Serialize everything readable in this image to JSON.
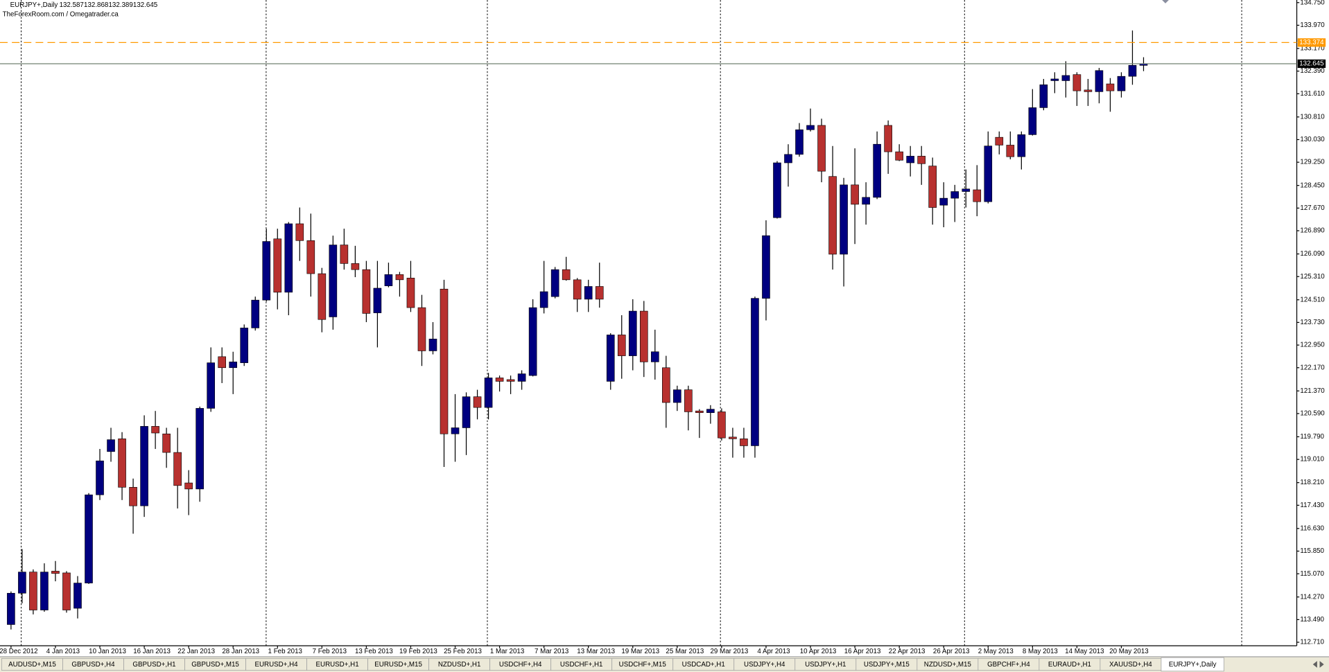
{
  "chart_data": {
    "type": "candlestick",
    "title": "EURJPY+,Daily",
    "watermark": "TheForexRoom.com / Omegatrader.ca",
    "categories": [
      "28 Dec 2012",
      null,
      null,
      null,
      "4 Jan 2013",
      null,
      null,
      null,
      "10 Jan 2013",
      null,
      null,
      null,
      "16 Jan 2013",
      null,
      null,
      null,
      "22 Jan 2013",
      null,
      null,
      null,
      "28 Jan 2013",
      null,
      null,
      null,
      "1 Feb 2013",
      null,
      null,
      null,
      "7 Feb 2013",
      null,
      null,
      null,
      "13 Feb 2013",
      null,
      null,
      null,
      "19 Feb 2013",
      null,
      null,
      null,
      "25 Feb 2013",
      null,
      null,
      null,
      "1 Mar 2013",
      null,
      null,
      null,
      "7 Mar 2013",
      null,
      null,
      null,
      "13 Mar 2013",
      null,
      null,
      null,
      "19 Mar 2013",
      null,
      null,
      null,
      "25 Mar 2013",
      null,
      null,
      null,
      "29 Mar 2013",
      null,
      null,
      null,
      "4 Apr 2013",
      null,
      null,
      null,
      "10 Apr 2013",
      null,
      null,
      null,
      "16 Apr 2013",
      null,
      null,
      null,
      "22 Apr 2013",
      null,
      null,
      null,
      "26 Apr 2013",
      null,
      null,
      null,
      "2 May 2013",
      null,
      null,
      null,
      "8 May 2013",
      null,
      null,
      null,
      "14 May 2013",
      null,
      null,
      null,
      "20 May 2013",
      null,
      null
    ],
    "open": [
      113.32,
      114.4,
      115.13,
      113.82,
      115.16,
      115.1,
      113.88,
      114.75,
      117.79,
      119.28,
      119.72,
      118.05,
      117.41,
      120.15,
      119.89,
      119.25,
      118.2,
      117.99,
      120.77,
      122.55,
      122.17,
      122.34,
      123.54,
      124.5,
      126.61,
      124.77,
      127.13,
      126.55,
      125.41,
      123.92,
      126.4,
      125.76,
      125.55,
      124.06,
      124.99,
      125.38,
      125.26,
      124.24,
      122.75,
      124.88,
      119.89,
      120.1,
      121.17,
      120.8,
      121.82,
      121.76,
      121.7,
      121.9,
      124.24,
      124.62,
      125.55,
      125.2,
      124.53,
      124.97,
      121.7,
      123.3,
      122.58,
      124.12,
      122.37,
      122.17,
      120.97,
      121.41,
      120.68,
      120.62,
      120.65,
      119.78,
      119.72,
      119.48,
      124.56,
      127.34,
      129.23,
      129.52,
      130.37,
      130.52,
      128.76,
      126.08,
      128.47,
      127.8,
      128.04,
      130.52,
      129.61,
      129.23,
      129.46,
      129.12,
      127.77,
      128.01,
      128.24,
      128.3,
      127.89,
      130.11,
      129.84,
      129.44,
      130.2,
      131.13,
      132.06,
      132.06,
      132.27,
      131.74,
      131.68,
      131.95,
      131.71,
      132.21,
      132.587
    ],
    "high": [
      114.46,
      115.92,
      115.22,
      115.43,
      115.51,
      115.16,
      114.99,
      117.85,
      119.37,
      120.1,
      119.95,
      118.35,
      120.53,
      120.68,
      120.1,
      120.1,
      118.64,
      120.83,
      122.87,
      122.87,
      122.72,
      123.66,
      124.62,
      126.96,
      126.96,
      127.19,
      127.69,
      127.48,
      125.61,
      126.72,
      126.96,
      126.37,
      125.85,
      125.85,
      125.79,
      125.47,
      125.85,
      124.68,
      123.74,
      125.2,
      121.26,
      121.32,
      121.41,
      121.99,
      121.9,
      121.9,
      122.08,
      124.53,
      125.85,
      125.64,
      125.99,
      125.26,
      125.2,
      125.79,
      123.36,
      123.98,
      124.53,
      124.47,
      123.48,
      122.58,
      121.55,
      121.55,
      120.74,
      120.88,
      120.77,
      120.1,
      120.1,
      124.62,
      127.25,
      129.29,
      129.87,
      130.6,
      131.1,
      130.75,
      129.81,
      128.71,
      129.73,
      128.56,
      130.31,
      130.69,
      129.87,
      129.81,
      129.81,
      129.41,
      128.56,
      128.47,
      129.0,
      129.15,
      130.31,
      130.31,
      130.31,
      130.31,
      131.77,
      132.12,
      132.35,
      132.73,
      132.35,
      132.12,
      132.5,
      132.15,
      132.35,
      133.79,
      132.868
    ],
    "low": [
      113.15,
      114.05,
      113.67,
      113.76,
      114.81,
      113.73,
      113.53,
      114.72,
      117.61,
      118.93,
      117.61,
      116.45,
      117.03,
      119.37,
      118.72,
      117.32,
      117.09,
      117.55,
      120.65,
      121.64,
      121.26,
      122.23,
      123.45,
      124.45,
      124.18,
      123.98,
      125.85,
      124.62,
      123.39,
      123.48,
      125.55,
      125.29,
      123.74,
      122.87,
      124.94,
      124.62,
      124.09,
      122.23,
      122.63,
      118.75,
      118.93,
      119.16,
      120.39,
      120.39,
      121.35,
      121.26,
      121.41,
      121.87,
      124.04,
      124.56,
      125.17,
      124.09,
      124.09,
      124.24,
      121.41,
      121.79,
      122.08,
      121.85,
      121.76,
      120.1,
      120.68,
      120.01,
      119.75,
      120.24,
      119.66,
      119.07,
      119.07,
      119.07,
      123.8,
      127.31,
      128.41,
      129.44,
      130.31,
      128.56,
      125.55,
      124.97,
      126.43,
      127.1,
      127.98,
      128.85,
      129.29,
      128.76,
      128.47,
      127.1,
      127.01,
      127.19,
      127.69,
      127.39,
      127.83,
      129.52,
      129.35,
      129.0,
      130.17,
      131.04,
      131.63,
      131.48,
      131.19,
      131.19,
      131.28,
      130.99,
      131.48,
      131.92,
      132.389
    ],
    "close": [
      114.4,
      115.13,
      113.82,
      115.13,
      115.08,
      113.82,
      114.75,
      117.79,
      118.96,
      119.69,
      118.05,
      117.41,
      120.15,
      119.92,
      119.25,
      118.11,
      117.99,
      120.77,
      122.34,
      122.17,
      122.37,
      123.54,
      124.5,
      126.52,
      124.77,
      127.13,
      126.55,
      125.41,
      123.83,
      126.4,
      125.76,
      125.55,
      124.04,
      124.91,
      125.38,
      125.2,
      124.24,
      122.75,
      123.16,
      119.89,
      120.1,
      121.17,
      120.8,
      121.82,
      121.7,
      121.7,
      121.96,
      124.24,
      124.79,
      125.55,
      125.2,
      124.53,
      124.97,
      124.53,
      123.3,
      122.58,
      124.12,
      122.37,
      122.72,
      120.97,
      121.41,
      120.65,
      120.62,
      120.74,
      119.75,
      119.72,
      119.48,
      124.56,
      126.72,
      129.23,
      129.52,
      130.37,
      130.52,
      128.94,
      126.08,
      128.47,
      127.8,
      128.04,
      129.87,
      129.61,
      129.32,
      129.46,
      129.2,
      127.69,
      128.01,
      128.24,
      128.33,
      127.89,
      129.81,
      129.84,
      129.44,
      130.2,
      131.13,
      131.92,
      132.12,
      132.24,
      131.71,
      131.68,
      132.41,
      131.71,
      132.21,
      132.59,
      132.645
    ],
    "colors": {
      "up": "#000080",
      "down": "#b8312f",
      "wick": "#000000"
    },
    "alert_level": 133.374,
    "alert_color": "#ff9900",
    "ylim": [
      112.59,
      134.84
    ],
    "yticks": [
      {
        "value": 112.71,
        "label": "112.710"
      },
      {
        "value": 113.49,
        "label": "113.490"
      },
      {
        "value": 114.27,
        "label": "114.270"
      },
      {
        "value": 115.07,
        "label": "115.070"
      },
      {
        "value": 115.85,
        "label": "115.850"
      },
      {
        "value": 116.63,
        "label": "116.630"
      },
      {
        "value": 117.43,
        "label": "117.430"
      },
      {
        "value": 118.21,
        "label": "118.210"
      },
      {
        "value": 119.01,
        "label": "119.010"
      },
      {
        "value": 119.79,
        "label": "119.790"
      },
      {
        "value": 120.59,
        "label": "120.590"
      },
      {
        "value": 121.37,
        "label": "121.370"
      },
      {
        "value": 122.17,
        "label": "122.170"
      },
      {
        "value": 122.95,
        "label": "122.950"
      },
      {
        "value": 123.73,
        "label": "123.730"
      },
      {
        "value": 124.51,
        "label": "124.510"
      },
      {
        "value": 125.31,
        "label": "125.310"
      },
      {
        "value": 126.09,
        "label": "126.090"
      },
      {
        "value": 126.89,
        "label": "126.890"
      },
      {
        "value": 127.67,
        "label": "127.670"
      },
      {
        "value": 128.45,
        "label": "128.450"
      },
      {
        "value": 129.25,
        "label": "129.250"
      },
      {
        "value": 130.03,
        "label": "130.030"
      },
      {
        "value": 130.81,
        "label": "130.810"
      },
      {
        "value": 131.61,
        "label": "131.610"
      },
      {
        "value": 132.39,
        "label": "132.390"
      },
      {
        "value": 133.17,
        "label": "133.170"
      },
      {
        "value": 133.97,
        "label": "133.970"
      },
      {
        "value": 134.75,
        "label": "134.750"
      }
    ]
  },
  "tabs": [
    "AUDUSD+,M15",
    "GBPUSD+,H4",
    "GBPUSD+,H1",
    "GBPUSD+,M15",
    "EURUSD+,H4",
    "EURUSD+,H1",
    "EURUSD+,M15",
    "NZDUSD+,H1",
    "USDCHF+,H4",
    "USDCHF+,H1",
    "USDCHF+,M15",
    "USDCAD+,H1",
    "USDJPY+,H4",
    "USDJPY+,H1",
    "USDJPY+,M15",
    "NZDUSD+,M15",
    "GBPCHF+,H4",
    "EURAUD+,H1",
    "XAUUSD+,H4",
    "EURJPY+,Daily"
  ],
  "active_tab": 19
}
